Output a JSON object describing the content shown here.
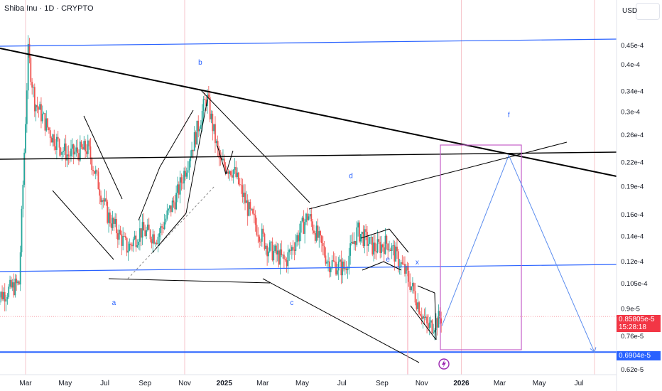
{
  "header": {
    "symbol_title": "Shiba Inu · 1D · CRYPTO",
    "currency": "USD"
  },
  "price_labels": {
    "current_price": "0.85805e-5",
    "countdown": "15:28:18",
    "support_price": "0.6904e-5"
  },
  "colors": {
    "up": "#26a69a",
    "down": "#ef5350",
    "trendline": "#000000",
    "channel": "#2962ff",
    "projection": "#5b8def",
    "box": "#c45dc8",
    "current_tag": "#f23645",
    "support_tag": "#2962ff"
  },
  "chart_data": {
    "type": "candlestick",
    "x_axis": {
      "ticks": [
        "Mar",
        "May",
        "Jul",
        "Sep",
        "Nov",
        "2025",
        "Mar",
        "May",
        "Jul",
        "Sep",
        "Nov",
        "2026",
        "Mar",
        "May",
        "Jul"
      ]
    },
    "y_axis": {
      "scale": "log",
      "ticks": [
        "0.45e-4",
        "0.4e-4",
        "0.34e-4",
        "0.3e-4",
        "0.26e-4",
        "0.22e-4",
        "0.19e-4",
        "0.16e-4",
        "0.14e-4",
        "0.12e-4",
        "0.105e-4",
        "0.9e-5",
        "0.76e-5",
        "0.62e-5"
      ],
      "tick_values": [
        4.5e-05,
        4e-05,
        3.4e-05,
        3e-05,
        2.6e-05,
        2.2e-05,
        1.9e-05,
        1.6e-05,
        1.4e-05,
        1.2e-05,
        1.05e-05,
        9e-06,
        7.6e-06,
        6.2e-06
      ]
    },
    "price_path": [
      {
        "date": "2024-01-15",
        "close": 9.6e-06
      },
      {
        "date": "2024-02-20",
        "close": 1.05e-05
      },
      {
        "date": "2024-03-05",
        "close": 4.3e-05
      },
      {
        "date": "2024-03-15",
        "close": 3.2e-05
      },
      {
        "date": "2024-04-10",
        "close": 2.6e-05
      },
      {
        "date": "2024-05-05",
        "close": 2.3e-05
      },
      {
        "date": "2024-06-05",
        "close": 2.4e-05
      },
      {
        "date": "2024-07-05",
        "close": 1.6e-05
      },
      {
        "date": "2024-08-05",
        "close": 1.3e-05
      },
      {
        "date": "2024-08-25",
        "close": 1.45e-05
      },
      {
        "date": "2024-09-20",
        "close": 1.4e-05
      },
      {
        "date": "2024-10-20",
        "close": 1.8e-05
      },
      {
        "date": "2024-11-15",
        "close": 2.5e-05
      },
      {
        "date": "2024-12-05",
        "close": 3.3e-05
      },
      {
        "date": "2024-12-25",
        "close": 2.2e-05
      },
      {
        "date": "2025-01-15",
        "close": 2.1e-05
      },
      {
        "date": "2025-02-10",
        "close": 1.6e-05
      },
      {
        "date": "2025-03-10",
        "close": 1.3e-05
      },
      {
        "date": "2025-04-05",
        "close": 1.2e-05
      },
      {
        "date": "2025-05-10",
        "close": 1.6e-05
      },
      {
        "date": "2025-06-10",
        "close": 1.2e-05
      },
      {
        "date": "2025-07-05",
        "close": 1.15e-05
      },
      {
        "date": "2025-07-25",
        "close": 1.45e-05
      },
      {
        "date": "2025-08-20",
        "close": 1.3e-05
      },
      {
        "date": "2025-09-10",
        "close": 1.35e-05
      },
      {
        "date": "2025-10-10",
        "close": 1.1e-05
      },
      {
        "date": "2025-11-10",
        "close": 8e-06
      },
      {
        "date": "2025-12-02",
        "close": 8.58e-06
      }
    ],
    "current_price": 8.5805e-06,
    "support_level": 6.904e-06,
    "annotations": [
      {
        "text": "a",
        "date": "2024-07-15",
        "price": 9.2e-06
      },
      {
        "text": "b",
        "date": "2024-11-25",
        "price": 4e-05
      },
      {
        "text": "c",
        "date": "2025-04-15",
        "price": 9.2e-06
      },
      {
        "text": "d",
        "date": "2025-07-15",
        "price": 2e-05
      },
      {
        "text": "e",
        "date": "2025-09-10",
        "price": 1.2e-05
      },
      {
        "text": "x",
        "date": "2025-10-25",
        "price": 1.18e-05
      },
      {
        "text": "f",
        "date": "2026-03-15",
        "price": 2.9e-05
      }
    ],
    "projection": [
      {
        "date": "2025-12-02",
        "price": 8.1e-06
      },
      {
        "date": "2026-03-15",
        "price": 2.3e-05
      },
      {
        "date": "2026-07-25",
        "price": 6.9e-06
      }
    ],
    "grid": false
  }
}
